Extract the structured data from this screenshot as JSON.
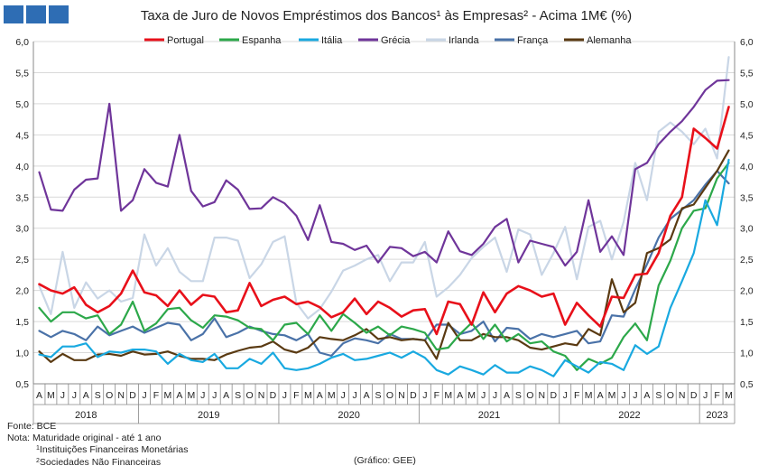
{
  "colors": {
    "Portugal": "#e8101a",
    "Espanha": "#2ca84a",
    "Itália": "#19a9e0",
    "Grécia": "#6f359a",
    "Irlanda": "#c9d6e6",
    "França": "#4a72a8",
    "Alemanha": "#5a3a12",
    "brand": "#2e6db4"
  },
  "footer": {
    "source": "Fonte: BCE",
    "note": "Nota: Maturidade original - até 1 ano",
    "fn1_mark": "1",
    "fn1_text": "Instituições Financeiras Monetárias",
    "fn2_mark": "2",
    "fn2_text": "Sociedades Não Financeiras",
    "credit": "(Gráfico: GEE)"
  },
  "chart_data": {
    "type": "line",
    "title": "Taxa de Juro de Novos Empréstimos dos Bancos¹ às Empresas² - Acima 1M€ (%)",
    "ylim": [
      0.5,
      6.0
    ],
    "yticks": [
      "0,5",
      "1,0",
      "1,5",
      "2,0",
      "2,5",
      "3,0",
      "3,5",
      "4,0",
      "4,5",
      "5,0",
      "5,5",
      "6,0"
    ],
    "grid": true,
    "legend": "top",
    "x": [
      "2018-04",
      "2018-05",
      "2018-06",
      "2018-07",
      "2018-08",
      "2018-09",
      "2018-10",
      "2018-11",
      "2018-12",
      "2019-01",
      "2019-02",
      "2019-03",
      "2019-04",
      "2019-05",
      "2019-06",
      "2019-07",
      "2019-08",
      "2019-09",
      "2019-10",
      "2019-11",
      "2019-12",
      "2020-01",
      "2020-02",
      "2020-03",
      "2020-04",
      "2020-05",
      "2020-06",
      "2020-07",
      "2020-08",
      "2020-09",
      "2020-10",
      "2020-11",
      "2020-12",
      "2021-01",
      "2021-02",
      "2021-03",
      "2021-04",
      "2021-05",
      "2021-06",
      "2021-07",
      "2021-08",
      "2021-09",
      "2021-10",
      "2021-11",
      "2021-12",
      "2022-01",
      "2022-02",
      "2022-03",
      "2022-04",
      "2022-05",
      "2022-06",
      "2022-07",
      "2022-08",
      "2022-09",
      "2022-10",
      "2022-11",
      "2022-12",
      "2023-01",
      "2023-02",
      "2023-03"
    ],
    "month_labels": [
      "A",
      "M",
      "J",
      "J",
      "A",
      "S",
      "O",
      "N",
      "D",
      "J",
      "F",
      "M",
      "A",
      "M",
      "J",
      "J",
      "A",
      "S",
      "O",
      "N",
      "D",
      "J",
      "F",
      "M",
      "A",
      "M",
      "J",
      "J",
      "A",
      "S",
      "O",
      "N",
      "D",
      "J",
      "F",
      "M",
      "A",
      "M",
      "J",
      "J",
      "A",
      "S",
      "O",
      "N",
      "D",
      "J",
      "F",
      "M",
      "A",
      "M",
      "J",
      "J",
      "A",
      "S",
      "O",
      "N",
      "D",
      "J",
      "F",
      "M"
    ],
    "years": [
      {
        "label": "2018",
        "start": 0,
        "end": 8
      },
      {
        "label": "2019",
        "start": 9,
        "end": 20
      },
      {
        "label": "2020",
        "start": 21,
        "end": 32
      },
      {
        "label": "2021",
        "start": 33,
        "end": 44
      },
      {
        "label": "2022",
        "start": 45,
        "end": 56
      },
      {
        "label": "2023",
        "start": 57,
        "end": 59
      }
    ],
    "series": [
      {
        "name": "Irlanda",
        "values": [
          2.07,
          1.62,
          2.62,
          1.72,
          2.13,
          1.87,
          2.0,
          1.82,
          1.88,
          2.9,
          2.4,
          2.68,
          2.3,
          2.15,
          2.15,
          2.85,
          2.85,
          2.8,
          2.2,
          2.42,
          2.78,
          2.87,
          1.8,
          1.55,
          1.7,
          1.98,
          2.32,
          2.4,
          2.5,
          2.57,
          2.15,
          2.45,
          2.45,
          2.78,
          1.9,
          2.05,
          2.25,
          2.52,
          2.7,
          2.85,
          2.3,
          2.98,
          2.9,
          2.25,
          2.6,
          3.02,
          2.18,
          3.02,
          3.12,
          2.5,
          3.1,
          4.05,
          3.45,
          4.55,
          4.7,
          4.55,
          4.35,
          4.6,
          4.12,
          5.75
        ]
      },
      {
        "name": "Grécia",
        "values": [
          3.9,
          3.3,
          3.28,
          3.62,
          3.78,
          3.8,
          5.0,
          3.28,
          3.45,
          3.95,
          3.73,
          3.67,
          4.5,
          3.6,
          3.35,
          3.42,
          3.77,
          3.62,
          3.31,
          3.32,
          3.5,
          3.4,
          3.2,
          2.81,
          3.37,
          2.78,
          2.75,
          2.65,
          2.72,
          2.45,
          2.7,
          2.68,
          2.55,
          2.62,
          2.45,
          2.95,
          2.63,
          2.57,
          2.75,
          3.02,
          3.15,
          2.45,
          2.8,
          2.75,
          2.7,
          2.4,
          2.62,
          3.45,
          2.62,
          2.87,
          2.57,
          3.95,
          4.05,
          4.35,
          4.55,
          4.72,
          4.95,
          5.22,
          5.37,
          5.38
        ]
      },
      {
        "name": "França",
        "values": [
          1.35,
          1.25,
          1.35,
          1.3,
          1.2,
          1.42,
          1.28,
          1.35,
          1.42,
          1.32,
          1.4,
          1.48,
          1.45,
          1.2,
          1.3,
          1.55,
          1.25,
          1.32,
          1.42,
          1.35,
          1.3,
          1.28,
          1.2,
          1.3,
          1.0,
          0.95,
          1.15,
          1.23,
          1.2,
          1.15,
          1.3,
          1.22,
          1.22,
          1.2,
          1.45,
          1.45,
          1.3,
          1.35,
          1.5,
          1.18,
          1.4,
          1.38,
          1.22,
          1.3,
          1.25,
          1.3,
          1.35,
          1.15,
          1.18,
          1.6,
          1.58,
          2.02,
          2.42,
          2.85,
          3.15,
          3.3,
          3.45,
          3.7,
          3.92,
          3.72
        ]
      },
      {
        "name": "Alemanha",
        "values": [
          1.02,
          0.85,
          0.98,
          0.88,
          0.88,
          0.97,
          0.98,
          0.95,
          1.02,
          0.97,
          0.98,
          1.02,
          0.95,
          0.9,
          0.9,
          0.88,
          0.97,
          1.03,
          1.08,
          1.1,
          1.18,
          1.05,
          1.0,
          1.08,
          1.25,
          1.22,
          1.2,
          1.28,
          1.38,
          1.22,
          1.25,
          1.2,
          1.22,
          1.2,
          0.9,
          1.48,
          1.2,
          1.2,
          1.3,
          1.25,
          1.25,
          1.2,
          1.08,
          1.05,
          1.1,
          1.15,
          1.12,
          1.38,
          1.28,
          2.18,
          1.65,
          1.8,
          2.6,
          2.68,
          2.82,
          3.32,
          3.38,
          3.65,
          3.92,
          4.25
        ]
      },
      {
        "name": "Espanha",
        "values": [
          1.72,
          1.5,
          1.65,
          1.65,
          1.55,
          1.6,
          1.3,
          1.45,
          1.82,
          1.35,
          1.47,
          1.7,
          1.72,
          1.52,
          1.4,
          1.6,
          1.58,
          1.52,
          1.4,
          1.38,
          1.2,
          1.45,
          1.48,
          1.3,
          1.6,
          1.35,
          1.62,
          1.48,
          1.32,
          1.42,
          1.28,
          1.42,
          1.38,
          1.32,
          1.05,
          1.08,
          1.3,
          1.48,
          1.22,
          1.45,
          1.18,
          1.3,
          1.15,
          1.18,
          1.02,
          0.95,
          0.72,
          0.9,
          0.82,
          0.92,
          1.25,
          1.47,
          1.2,
          2.08,
          2.48,
          3.0,
          3.28,
          3.32,
          3.8,
          4.05
        ]
      },
      {
        "name": "Portugal",
        "values": [
          2.1,
          2.0,
          1.95,
          2.05,
          1.77,
          1.65,
          1.75,
          1.95,
          2.32,
          1.97,
          1.92,
          1.75,
          2.0,
          1.77,
          1.93,
          1.9,
          1.65,
          1.68,
          2.12,
          1.75,
          1.85,
          1.9,
          1.78,
          1.82,
          1.73,
          1.57,
          1.65,
          1.87,
          1.62,
          1.82,
          1.72,
          1.58,
          1.68,
          1.7,
          1.3,
          1.82,
          1.78,
          1.45,
          1.97,
          1.65,
          1.95,
          2.07,
          2.0,
          1.9,
          1.95,
          1.45,
          1.8,
          1.6,
          1.42,
          1.9,
          1.88,
          2.25,
          2.27,
          2.6,
          3.2,
          3.5,
          4.6,
          4.45,
          4.28,
          4.95
        ]
      },
      {
        "name": "Itália",
        "values": [
          0.97,
          0.93,
          1.1,
          1.1,
          1.15,
          0.93,
          1.02,
          1.0,
          1.05,
          1.05,
          1.02,
          0.82,
          0.98,
          0.88,
          0.85,
          0.98,
          0.75,
          0.75,
          0.9,
          0.82,
          1.0,
          0.75,
          0.72,
          0.75,
          0.82,
          0.92,
          0.98,
          0.88,
          0.9,
          0.95,
          1.0,
          0.92,
          1.02,
          0.92,
          0.72,
          0.65,
          0.78,
          0.72,
          0.65,
          0.8,
          0.68,
          0.68,
          0.78,
          0.72,
          0.62,
          0.88,
          0.78,
          0.68,
          0.85,
          0.82,
          0.72,
          1.12,
          0.98,
          1.1,
          1.72,
          2.15,
          2.6,
          3.45,
          3.05,
          4.1
        ]
      }
    ],
    "legend_order": [
      "Portugal",
      "Espanha",
      "Itália",
      "Grécia",
      "Irlanda",
      "França",
      "Alemanha"
    ]
  }
}
